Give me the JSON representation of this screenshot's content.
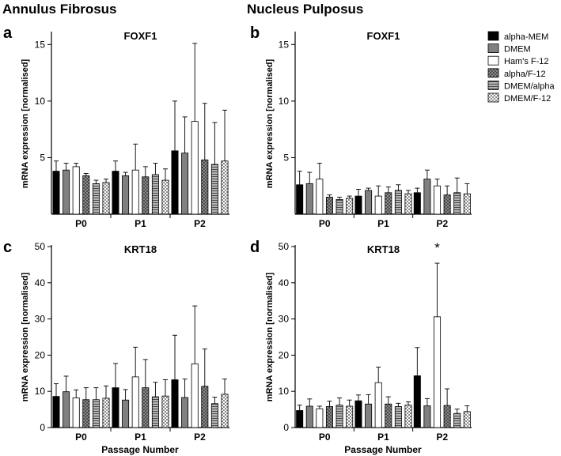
{
  "figure": {
    "column_titles": [
      "Annulus Fibrosus",
      "Nucleus Pulposus"
    ],
    "xlabel": "Passage Number",
    "ylabel": "mRNA expression [normalised]",
    "legend_position": "top-right",
    "legend": [
      {
        "name": "alpha-MEM",
        "fill": "#000000",
        "pattern": "solid"
      },
      {
        "name": "DMEM",
        "fill": "#808080",
        "pattern": "solid"
      },
      {
        "name": "Ham's F-12",
        "fill": "#ffffff",
        "pattern": "solid"
      },
      {
        "name": "alpha/F-12",
        "fill": "#9a9a9a",
        "pattern": "crosshatch"
      },
      {
        "name": "DMEM/alpha",
        "fill": "#a8a8a8",
        "pattern": "horizontal-lines"
      },
      {
        "name": "DMEM/F-12",
        "fill": "#ffffff",
        "pattern": "checker"
      }
    ]
  },
  "chart_data": [
    {
      "panel": "a",
      "type": "bar",
      "title": "FOXF1",
      "categories": [
        "P0",
        "P1",
        "P2"
      ],
      "ylim": [
        0,
        16
      ],
      "yticks": [
        5,
        10,
        15
      ],
      "series": [
        {
          "name": "alpha-MEM",
          "values": [
            3.8,
            3.8,
            5.6
          ],
          "errors": [
            0.9,
            0.9,
            4.4
          ]
        },
        {
          "name": "DMEM",
          "values": [
            3.9,
            3.4,
            5.4
          ],
          "errors": [
            0.6,
            0.3,
            3.2
          ]
        },
        {
          "name": "Ham's F-12",
          "values": [
            4.2,
            3.9,
            8.2
          ],
          "errors": [
            0.3,
            2.3,
            6.9
          ]
        },
        {
          "name": "alpha/F-12",
          "values": [
            3.4,
            3.3,
            4.8
          ],
          "errors": [
            0.2,
            0.9,
            5.0
          ]
        },
        {
          "name": "DMEM/alpha",
          "values": [
            2.7,
            3.5,
            4.4
          ],
          "errors": [
            0.3,
            1.0,
            3.7
          ]
        },
        {
          "name": "DMEM/F-12",
          "values": [
            2.8,
            3.0,
            4.7
          ],
          "errors": [
            0.3,
            1.0,
            4.5
          ]
        }
      ]
    },
    {
      "panel": "b",
      "type": "bar",
      "title": "FOXF1",
      "categories": [
        "P0",
        "P1",
        "P2"
      ],
      "ylim": [
        0,
        16
      ],
      "yticks": [
        5,
        10,
        15
      ],
      "series": [
        {
          "name": "alpha-MEM",
          "values": [
            2.6,
            1.6,
            1.9
          ],
          "errors": [
            1.2,
            0.6,
            0.4
          ]
        },
        {
          "name": "DMEM",
          "values": [
            2.7,
            2.1,
            3.1
          ],
          "errors": [
            1.0,
            0.2,
            0.8
          ]
        },
        {
          "name": "Ham's F-12",
          "values": [
            3.1,
            1.6,
            2.5
          ],
          "errors": [
            1.4,
            0.9,
            0.6
          ]
        },
        {
          "name": "alpha/F-12",
          "values": [
            1.5,
            1.9,
            1.7
          ],
          "errors": [
            0.2,
            0.5,
            0.8
          ]
        },
        {
          "name": "DMEM/alpha",
          "values": [
            1.3,
            2.1,
            1.9
          ],
          "errors": [
            0.2,
            0.5,
            1.3
          ]
        },
        {
          "name": "DMEM/F-12",
          "values": [
            1.4,
            1.8,
            1.8
          ],
          "errors": [
            0.2,
            0.3,
            0.9
          ]
        }
      ]
    },
    {
      "panel": "c",
      "type": "bar",
      "title": "KRT18",
      "categories": [
        "P0",
        "P1",
        "P2"
      ],
      "ylim": [
        0,
        50
      ],
      "yticks": [
        0,
        10,
        20,
        30,
        40,
        50
      ],
      "series": [
        {
          "name": "alpha-MEM",
          "values": [
            8.6,
            11.0,
            13.2
          ],
          "errors": [
            3.5,
            6.7,
            12.3
          ]
        },
        {
          "name": "DMEM",
          "values": [
            9.9,
            7.6,
            8.3
          ],
          "errors": [
            4.3,
            2.9,
            5.1
          ]
        },
        {
          "name": "Ham's F-12",
          "values": [
            8.2,
            14.0,
            17.6
          ],
          "errors": [
            2.2,
            8.2,
            16.0
          ]
        },
        {
          "name": "alpha/F-12",
          "values": [
            7.7,
            11.0,
            11.4
          ],
          "errors": [
            3.3,
            7.8,
            10.3
          ]
        },
        {
          "name": "DMEM/alpha",
          "values": [
            7.7,
            8.5,
            6.6
          ],
          "errors": [
            3.3,
            4.0,
            1.8
          ]
        },
        {
          "name": "DMEM/F-12",
          "values": [
            8.1,
            8.7,
            9.2
          ],
          "errors": [
            3.4,
            4.5,
            4.2
          ]
        }
      ]
    },
    {
      "panel": "d",
      "type": "bar",
      "title": "KRT18",
      "categories": [
        "P0",
        "P1",
        "P2"
      ],
      "ylim": [
        0,
        50
      ],
      "yticks": [
        0,
        10,
        20,
        30,
        40,
        50
      ],
      "annotations": [
        {
          "text": "*",
          "category": "P2",
          "series": "Ham's F-12"
        }
      ],
      "series": [
        {
          "name": "alpha-MEM",
          "values": [
            4.7,
            7.4,
            14.3
          ],
          "errors": [
            1.5,
            1.6,
            7.8
          ]
        },
        {
          "name": "DMEM",
          "values": [
            5.9,
            6.5,
            6.0
          ],
          "errors": [
            2.0,
            2.6,
            2.0
          ]
        },
        {
          "name": "Ham's F-12",
          "values": [
            5.2,
            12.4,
            30.6
          ],
          "errors": [
            0.7,
            4.3,
            14.8
          ]
        },
        {
          "name": "alpha/F-12",
          "values": [
            5.8,
            6.5,
            6.1
          ],
          "errors": [
            1.5,
            2.0,
            4.6
          ]
        },
        {
          "name": "DMEM/alpha",
          "values": [
            6.2,
            5.8,
            3.9
          ],
          "errors": [
            2.0,
            0.9,
            1.2
          ]
        },
        {
          "name": "DMEM/F-12",
          "values": [
            5.9,
            6.2,
            4.4
          ],
          "errors": [
            1.7,
            0.9,
            1.6
          ]
        }
      ]
    }
  ]
}
